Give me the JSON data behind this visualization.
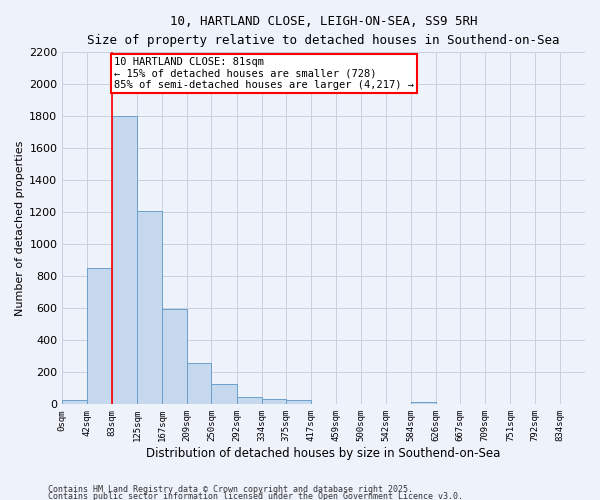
{
  "title1": "10, HARTLAND CLOSE, LEIGH-ON-SEA, SS9 5RH",
  "title2": "Size of property relative to detached houses in Southend-on-Sea",
  "xlabel": "Distribution of detached houses by size in Southend-on-Sea",
  "ylabel": "Number of detached properties",
  "bar_edges": [
    0,
    42,
    83,
    125,
    167,
    209,
    250,
    292,
    334,
    375,
    417,
    459,
    500,
    542,
    584,
    626,
    667,
    709,
    751,
    792,
    834
  ],
  "bar_heights": [
    25,
    850,
    1800,
    1210,
    595,
    258,
    130,
    45,
    35,
    25,
    0,
    0,
    0,
    0,
    15,
    0,
    0,
    0,
    0,
    0
  ],
  "bar_color": "#c5d8ee",
  "bar_edge_color": "#6aa0cc",
  "property_line_x": 83,
  "property_line_color": "red",
  "ylim": [
    0,
    2200
  ],
  "yticks": [
    0,
    200,
    400,
    600,
    800,
    1000,
    1200,
    1400,
    1600,
    1800,
    2000,
    2200
  ],
  "annotation_text": "10 HARTLAND CLOSE: 81sqm\n← 15% of detached houses are smaller (728)\n85% of semi-detached houses are larger (4,217) →",
  "bg_color": "#eef2fb",
  "grid_color": "#c8cfe0",
  "footer1": "Contains HM Land Registry data © Crown copyright and database right 2025.",
  "footer2": "Contains public sector information licensed under the Open Government Licence v3.0."
}
